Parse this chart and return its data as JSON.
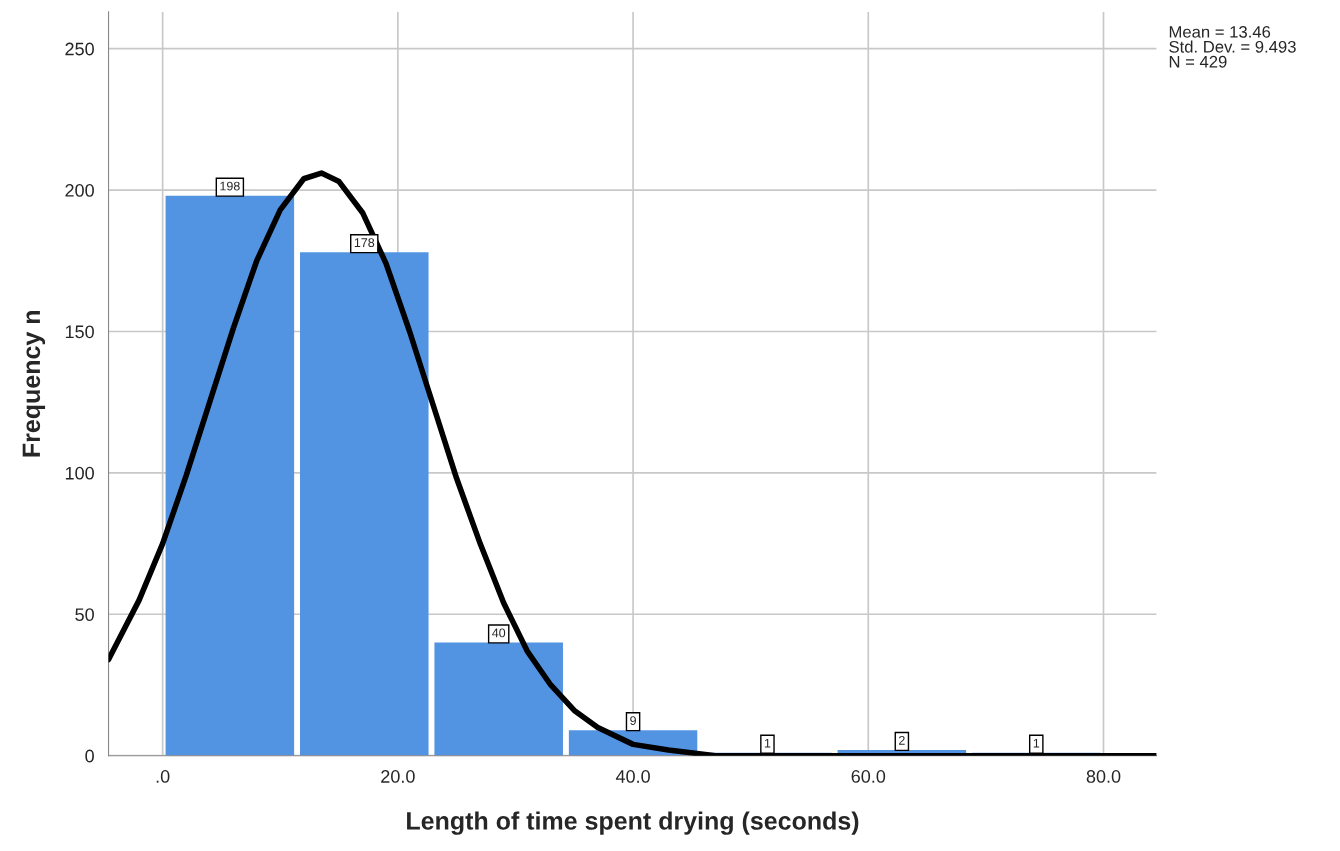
{
  "chart_data": {
    "type": "histogram",
    "xlabel": "Length of time spent drying (seconds)",
    "ylabel": "Frequency n",
    "bins": [
      0,
      11.43,
      22.86,
      34.29,
      45.71,
      57.14,
      68.57,
      80
    ],
    "values": [
      198,
      178,
      40,
      9,
      1,
      2,
      1
    ],
    "color": "#5294e2",
    "value_labels": [
      "198",
      "178",
      "40",
      "9",
      "1",
      "2",
      "1"
    ],
    "series": [
      {
        "type": "line",
        "color": "#000000",
        "x": [
          -4.6,
          -2,
          0,
          2,
          4,
          6,
          8,
          10,
          12,
          13.5,
          15,
          17,
          19,
          21,
          23,
          25,
          27,
          29,
          31,
          33,
          35,
          37,
          40,
          43,
          47,
          52,
          84.5
        ],
        "values": [
          34,
          55,
          75,
          99,
          125,
          151,
          175,
          193,
          204,
          206,
          203,
          192,
          174,
          150,
          124,
          98,
          75,
          54,
          37,
          25,
          16,
          10,
          4,
          2,
          0,
          0,
          0
        ]
      }
    ],
    "xlim": [
      -4.6,
      84.5
    ],
    "ylim": [
      0,
      263
    ],
    "xticks": [
      {
        "value": 0,
        "label": ".0"
      },
      {
        "value": 20,
        "label": "20.0"
      },
      {
        "value": 40,
        "label": "40.0"
      },
      {
        "value": 60,
        "label": "60.0"
      },
      {
        "value": 80,
        "label": "80.0"
      }
    ],
    "yticks": [
      0,
      50,
      100,
      150,
      200,
      250
    ],
    "grid": true,
    "annotations": [
      "Mean = 13.46\nStd. Dev. = 9.493\nN = 429"
    ]
  }
}
